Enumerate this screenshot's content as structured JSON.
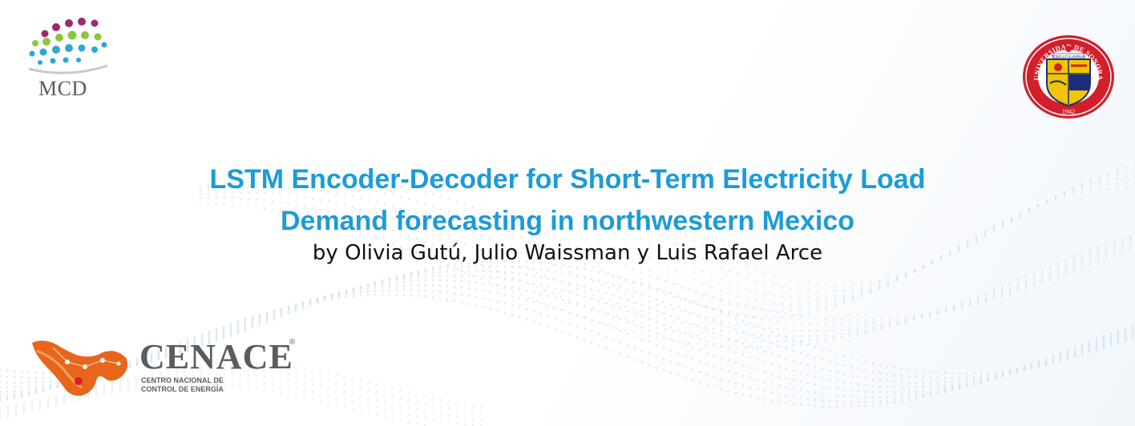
{
  "header": {
    "left_logo_text": "MCD",
    "right_logo": {
      "ring_text": "UNIVERSIDAD DE SONORA",
      "year": "1942",
      "motto": "TODO LO ILUMINAN"
    }
  },
  "title": {
    "line1": "LSTM Encoder-Decoder for Short-Term Electricity Load",
    "line2": "Demand forecasting in northwestern Mexico",
    "authors": "by Olivia Gutú, Julio Waissman y Luis Rafael Arce"
  },
  "footer_logo": {
    "name": "CENACE",
    "reg_mark": "®",
    "subtitle_line1": "CENTRO NACIONAL DE",
    "subtitle_line2": "CONTROL DE ENERGÍA"
  },
  "colors": {
    "title": "#1d9bd8",
    "dots_light": "#cfe3f2",
    "cenace_orange": "#e8651c",
    "unison_red": "#d31f2a"
  }
}
